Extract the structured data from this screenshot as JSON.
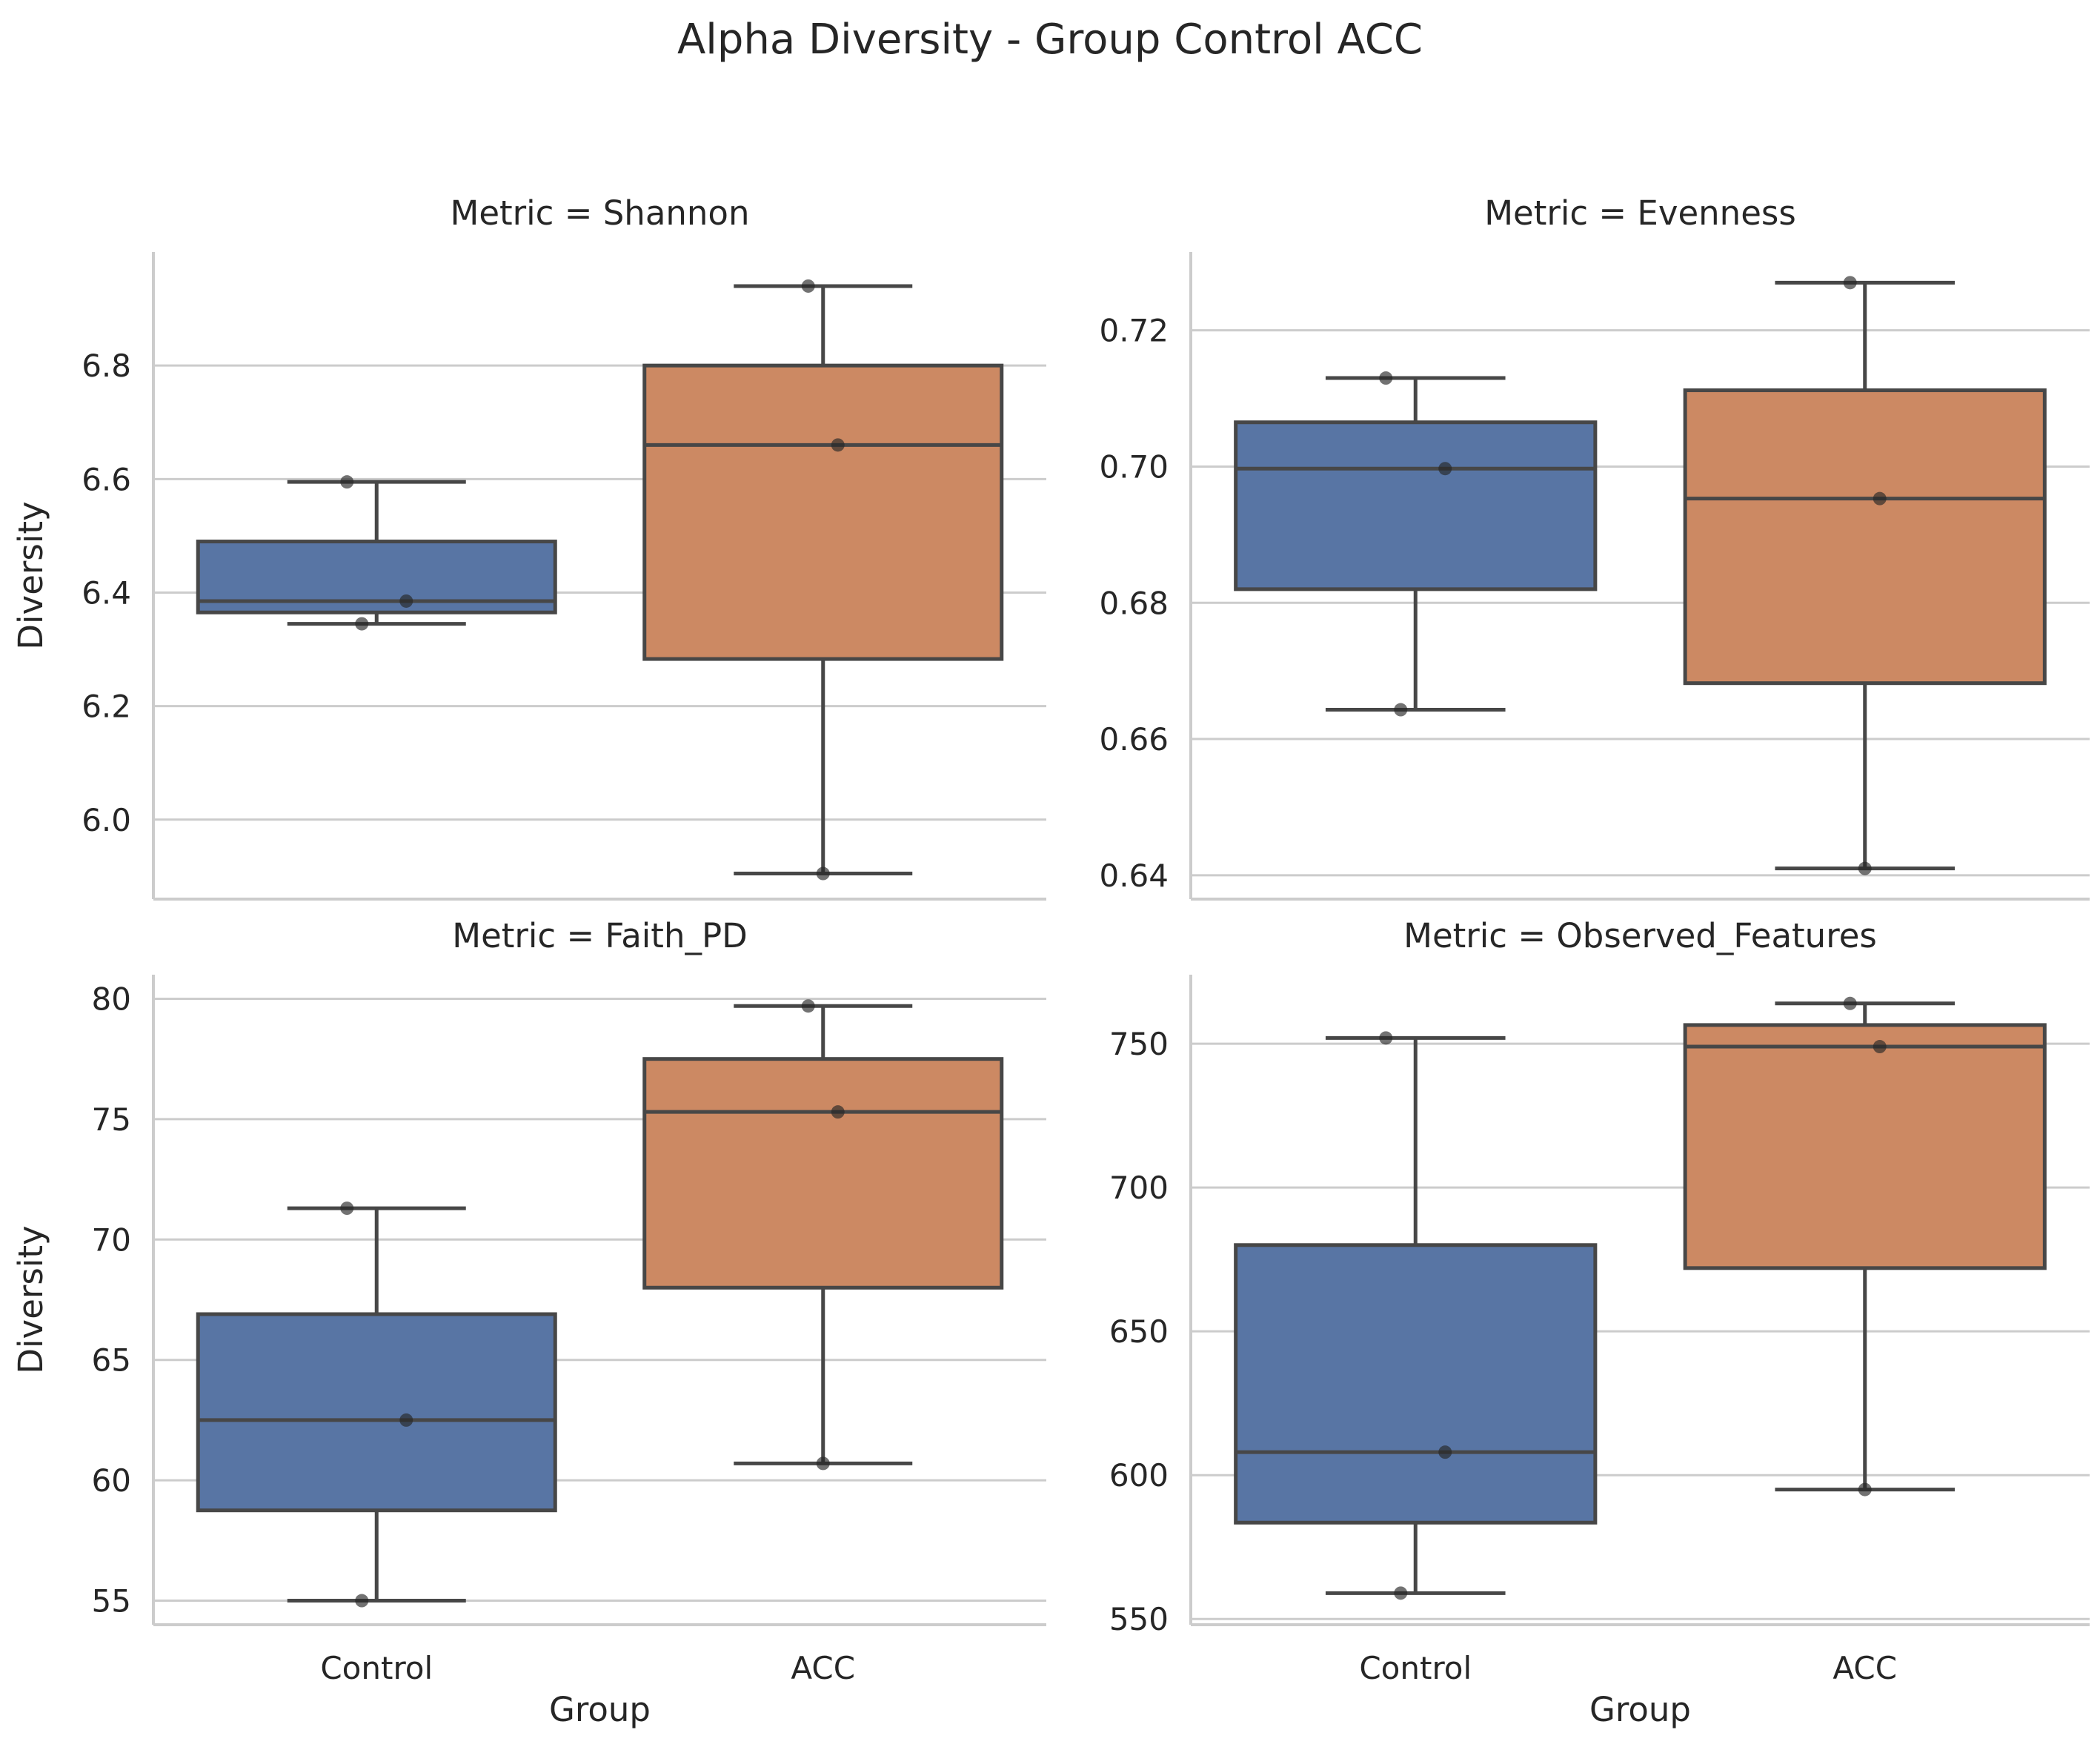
{
  "figure": {
    "title": "Alpha Diversity - Group Control ACC",
    "shared_xlabel": "Group",
    "shared_ylabel": "Diversity",
    "colors": {
      "Control": "#5875a4",
      "ACC": "#cc8963",
      "box_edge": "#474747",
      "grid": "#cccccc",
      "spine": "#cccccc",
      "points": "#262626"
    }
  },
  "chart_data": [
    {
      "type": "box",
      "title": "Metric = Shannon",
      "xlabel": "",
      "ylabel": "Diversity",
      "categories": [
        "Control",
        "ACC"
      ],
      "ylim": [
        5.86,
        7.0
      ],
      "yticks": [
        6.0,
        6.2,
        6.4,
        6.6,
        6.8
      ],
      "ytick_labels": [
        "6.0",
        "6.2",
        "6.4",
        "6.6",
        "6.8"
      ],
      "boxes": [
        {
          "group": "Control",
          "whislo": 6.345,
          "q1": 6.365,
          "med": 6.385,
          "q3": 6.49,
          "whishi": 6.595
        },
        {
          "group": "ACC",
          "whislo": 5.905,
          "q1": 6.283,
          "med": 6.66,
          "q3": 6.8,
          "whishi": 6.94
        }
      ],
      "points": [
        {
          "group": "Control",
          "y": 6.595
        },
        {
          "group": "Control",
          "y": 6.385
        },
        {
          "group": "Control",
          "y": 6.345
        },
        {
          "group": "ACC",
          "y": 6.94
        },
        {
          "group": "ACC",
          "y": 6.66
        },
        {
          "group": "ACC",
          "y": 5.905
        }
      ]
    },
    {
      "type": "box",
      "title": "Metric = Evenness",
      "xlabel": "",
      "ylabel": "",
      "categories": [
        "Control",
        "ACC"
      ],
      "ylim": [
        0.6365,
        0.7315
      ],
      "yticks": [
        0.64,
        0.66,
        0.68,
        0.7,
        0.72
      ],
      "ytick_labels": [
        "0.64",
        "0.66",
        "0.68",
        "0.70",
        "0.72"
      ],
      "boxes": [
        {
          "group": "Control",
          "whislo": 0.6643,
          "q1": 0.682,
          "med": 0.6997,
          "q3": 0.7065,
          "whishi": 0.713
        },
        {
          "group": "ACC",
          "whislo": 0.641,
          "q1": 0.6682,
          "med": 0.6953,
          "q3": 0.7112,
          "whishi": 0.727
        }
      ],
      "points": [
        {
          "group": "Control",
          "y": 0.713
        },
        {
          "group": "Control",
          "y": 0.6997
        },
        {
          "group": "Control",
          "y": 0.6643
        },
        {
          "group": "ACC",
          "y": 0.727
        },
        {
          "group": "ACC",
          "y": 0.6953
        },
        {
          "group": "ACC",
          "y": 0.641
        }
      ]
    },
    {
      "type": "box",
      "title": "Metric = Faith_PD",
      "xlabel": "Group",
      "ylabel": "Diversity",
      "categories": [
        "Control",
        "ACC"
      ],
      "ylim": [
        54.0,
        81.0
      ],
      "yticks": [
        55,
        60,
        65,
        70,
        75,
        80
      ],
      "ytick_labels": [
        "55",
        "60",
        "65",
        "70",
        "75",
        "80"
      ],
      "boxes": [
        {
          "group": "Control",
          "whislo": 55.0,
          "q1": 58.75,
          "med": 62.5,
          "q3": 66.9,
          "whishi": 71.3
        },
        {
          "group": "ACC",
          "whislo": 60.7,
          "q1": 68.0,
          "med": 75.3,
          "q3": 77.5,
          "whishi": 79.7
        }
      ],
      "points": [
        {
          "group": "Control",
          "y": 71.3
        },
        {
          "group": "Control",
          "y": 62.5
        },
        {
          "group": "Control",
          "y": 55.0
        },
        {
          "group": "ACC",
          "y": 79.7
        },
        {
          "group": "ACC",
          "y": 75.3
        },
        {
          "group": "ACC",
          "y": 60.7
        }
      ]
    },
    {
      "type": "box",
      "title": "Metric = Observed_Features",
      "xlabel": "Group",
      "ylabel": "",
      "categories": [
        "Control",
        "ACC"
      ],
      "ylim": [
        548,
        774
      ],
      "yticks": [
        550,
        600,
        650,
        700,
        750
      ],
      "ytick_labels": [
        "550",
        "600",
        "650",
        "700",
        "750"
      ],
      "boxes": [
        {
          "group": "Control",
          "whislo": 559,
          "q1": 583.5,
          "med": 608,
          "q3": 680,
          "whishi": 752
        },
        {
          "group": "ACC",
          "whislo": 595,
          "q1": 672,
          "med": 749,
          "q3": 756.5,
          "whishi": 764
        }
      ],
      "points": [
        {
          "group": "Control",
          "y": 752
        },
        {
          "group": "Control",
          "y": 608
        },
        {
          "group": "Control",
          "y": 559
        },
        {
          "group": "ACC",
          "y": 764
        },
        {
          "group": "ACC",
          "y": 749
        },
        {
          "group": "ACC",
          "y": 595
        }
      ]
    }
  ]
}
